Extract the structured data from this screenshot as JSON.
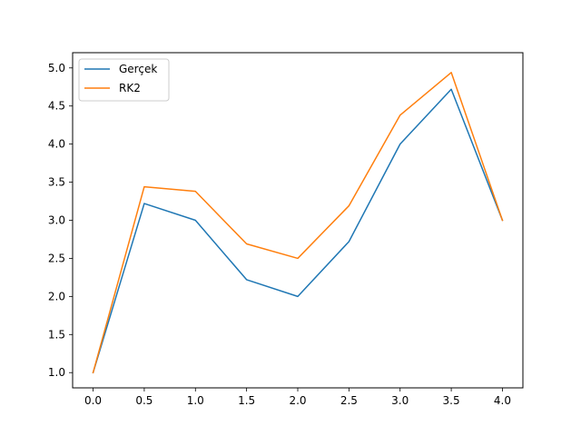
{
  "chart_data": {
    "type": "line",
    "title": "",
    "xlabel": "",
    "ylabel": "",
    "x": [
      0.0,
      0.5,
      1.0,
      1.5,
      2.0,
      2.5,
      3.0,
      3.5,
      4.0
    ],
    "xlim": [
      -0.2,
      4.2
    ],
    "ylim": [
      0.8,
      5.2
    ],
    "x_ticks": [
      "0.0",
      "0.5",
      "1.0",
      "1.5",
      "2.0",
      "2.5",
      "3.0",
      "3.5",
      "4.0"
    ],
    "y_ticks": [
      "1.0",
      "1.5",
      "2.0",
      "2.5",
      "3.0",
      "3.5",
      "4.0",
      "4.5",
      "5.0"
    ],
    "grid": false,
    "legend_position": "top-left",
    "series": [
      {
        "name": "Gerçek",
        "color": "#1f77b4",
        "values": [
          1.0,
          3.22,
          3.0,
          2.22,
          2.0,
          2.72,
          4.0,
          4.72,
          3.0
        ]
      },
      {
        "name": "RK2",
        "color": "#ff7f0e",
        "values": [
          1.0,
          3.44,
          3.38,
          2.69,
          2.5,
          3.19,
          4.38,
          4.94,
          3.0
        ]
      }
    ]
  }
}
